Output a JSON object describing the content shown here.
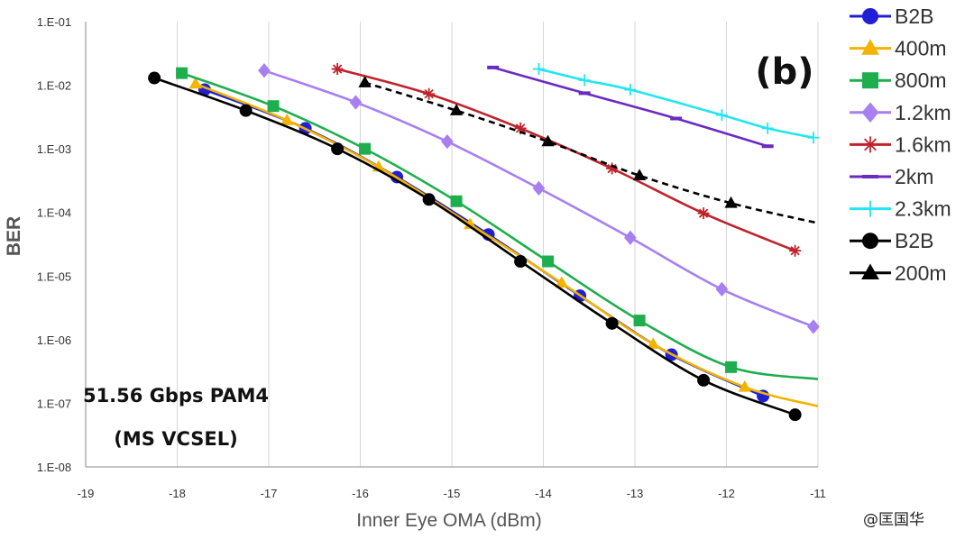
{
  "chart_data": {
    "type": "line",
    "ylabel": "BER",
    "xlabel": "Inner Eye OMA (dBm)",
    "yscale": "log",
    "xlim": [
      -19,
      -11
    ],
    "ylim": [
      1e-08,
      0.1
    ],
    "xticks": [
      "-19",
      "-18",
      "-17",
      "-16",
      "-15",
      "-14",
      "-13",
      "-12",
      "-11"
    ],
    "yticks": [
      "1.E-08",
      "1.E-07",
      "1.E-06",
      "1.E-05",
      "1.E-04",
      "1.E-03",
      "1.E-02",
      "1.E-01"
    ],
    "grid": "vertical",
    "legend": "right",
    "panel_label": "(b)",
    "annotation": [
      "51.56 Gbps PAM4",
      "(MS VCSEL)"
    ],
    "series": [
      {
        "name": "B2B",
        "color": "#1f1fd6",
        "marker": "circle",
        "dashed": false,
        "x": [
          -17.7,
          -16.6,
          -15.6,
          -14.6,
          -13.6,
          -12.6,
          -11.6
        ],
        "y": [
          0.0085,
          0.0021,
          0.00036,
          4.5e-05,
          4.9e-06,
          5.8e-07,
          1.3e-07
        ]
      },
      {
        "name": "400m",
        "color": "#f2b400",
        "marker": "triangle",
        "dashed": false,
        "x": [
          -17.8,
          -16.8,
          -15.8,
          -14.8,
          -13.8,
          -12.8,
          -11.8,
          -11.0
        ],
        "y": [
          0.0105,
          0.0028,
          0.00052,
          6.5e-05,
          7.8e-06,
          8.5e-07,
          1.8e-07,
          9e-08
        ]
      },
      {
        "name": "800m",
        "color": "#1fae4e",
        "marker": "square",
        "dashed": false,
        "x": [
          -17.95,
          -16.95,
          -15.95,
          -14.95,
          -13.95,
          -12.95,
          -11.95,
          -11.0
        ],
        "y": [
          0.0155,
          0.0047,
          0.001,
          0.00015,
          1.7e-05,
          2e-06,
          3.7e-07,
          2.4e-07
        ]
      },
      {
        "name": "1.2km",
        "color": "#a77ff0",
        "marker": "diamond",
        "dashed": false,
        "x": [
          -17.05,
          -16.05,
          -15.05,
          -14.05,
          -13.05,
          -12.05,
          -11.05
        ],
        "y": [
          0.017,
          0.0054,
          0.0013,
          0.00024,
          4e-05,
          6.2e-06,
          1.6e-06
        ]
      },
      {
        "name": "1.6km",
        "color": "#c0232b",
        "marker": "star",
        "dashed": false,
        "x": [
          -16.25,
          -15.25,
          -14.25,
          -13.25,
          -12.25,
          -11.25
        ],
        "y": [
          0.018,
          0.0073,
          0.0021,
          0.00049,
          9.7e-05,
          2.5e-05
        ]
      },
      {
        "name": "2km",
        "color": "#6a2bc2",
        "marker": "dash",
        "dashed": false,
        "x": [
          -14.55,
          -13.55,
          -12.55,
          -11.55
        ],
        "y": [
          0.019,
          0.0075,
          0.003,
          0.0011
        ]
      },
      {
        "name": "2.3km",
        "color": "#22e6ef",
        "marker": "plus",
        "dashed": false,
        "x": [
          -14.05,
          -13.55,
          -13.05,
          -12.05,
          -11.55,
          -11.05
        ],
        "y": [
          0.018,
          0.012,
          0.0085,
          0.0034,
          0.0021,
          0.0015
        ]
      },
      {
        "name": "B2B",
        "color": "#000000",
        "marker": "circle",
        "dashed": false,
        "x": [
          -18.25,
          -17.25,
          -16.25,
          -15.25,
          -14.25,
          -13.25,
          -12.25,
          -11.25
        ],
        "y": [
          0.013,
          0.004,
          0.001,
          0.00016,
          1.7e-05,
          1.8e-06,
          2.3e-07,
          6.6e-08
        ]
      },
      {
        "name": "200m",
        "color": "#000000",
        "marker": "triangle",
        "dashed": true,
        "x": [
          -15.95,
          -14.95,
          -13.95,
          -12.95,
          -11.95,
          -11.0
        ],
        "y": [
          0.011,
          0.004,
          0.0013,
          0.00038,
          0.00014,
          6.8e-05
        ]
      }
    ]
  },
  "watermark": "@匡国华"
}
